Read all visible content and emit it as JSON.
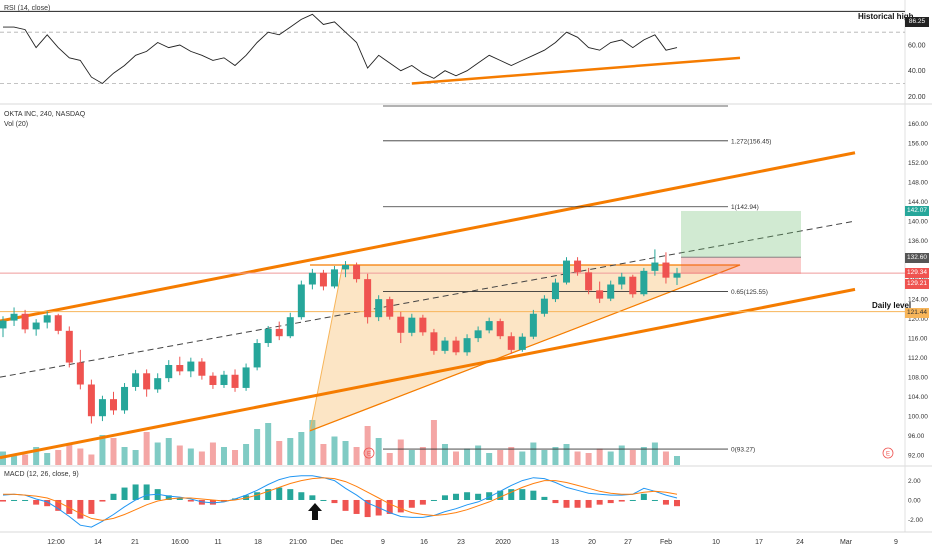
{
  "chart_data": {
    "type": "candlestick",
    "symbol_label": "OKTA INC, 240, NASDAQ",
    "volume_label": "Vol (20)",
    "rsi_label": "RSI (14, close)",
    "macd_label": "MACD (12, 26, close, 9)",
    "x_ticks": [
      "12:00",
      "14",
      "21",
      "16:00",
      "11",
      "18",
      "21:00",
      "Dec",
      "9",
      "16",
      "23",
      "2020",
      "13",
      "20",
      "27",
      "Feb",
      "10",
      "17",
      "24",
      "Mar",
      "9"
    ],
    "price_axis": {
      "ylim": [
        90,
        164
      ],
      "ticks": [
        160.0,
        156.0,
        152.0,
        148.0,
        144.0,
        140.0,
        136.0,
        132.0,
        128.0,
        124.0,
        120.0,
        116.0,
        112.0,
        108.0,
        104.0,
        100.0,
        96.0,
        92.0
      ]
    },
    "rsi_axis": {
      "ylim": [
        14,
        92
      ],
      "ticks": [
        80.0,
        60.0,
        40.0,
        20.0
      ],
      "historical_high": 86.25
    },
    "macd_axis": {
      "ylim": [
        -3.3,
        3.4
      ],
      "ticks": [
        2.0,
        0.0,
        -2.0
      ]
    },
    "fib_levels": [
      {
        "ratio": "1.272",
        "price": 156.45,
        "label": "1.272(156.45)"
      },
      {
        "ratio": "1",
        "price": 142.94,
        "label": "1(142.94)"
      },
      {
        "ratio": "0.65",
        "price": 125.55,
        "label": "0.65(125.55)"
      },
      {
        "ratio": "0",
        "price": 93.27,
        "label": "0(93.27)"
      }
    ],
    "price_badges": [
      {
        "value": "142.07",
        "color": "#26a69a"
      },
      {
        "value": "132.60",
        "color": "#555555"
      },
      {
        "value": "129.34",
        "color": "#ef5350"
      },
      {
        "value": "129.21",
        "color": "#ef5350"
      },
      {
        "value": "121.44",
        "color": "#f7b55a"
      }
    ],
    "rsi_badge": "86.25",
    "annotations": {
      "historical_high": "Historical high",
      "daily_level": "Daily level"
    },
    "colors": {
      "up": "#26a69a",
      "down": "#ef5350",
      "trend": "#f57c00",
      "macd": "#2196f3",
      "signal": "#ff7f0e"
    },
    "candles": [
      {
        "o": 118.0,
        "h": 120.5,
        "l": 116.2,
        "c": 119.6
      },
      {
        "o": 119.6,
        "h": 122.3,
        "l": 118.5,
        "c": 121.0
      },
      {
        "o": 121.0,
        "h": 121.8,
        "l": 117.0,
        "c": 117.8
      },
      {
        "o": 117.8,
        "h": 119.9,
        "l": 116.5,
        "c": 119.2
      },
      {
        "o": 119.2,
        "h": 121.5,
        "l": 118.0,
        "c": 120.7
      },
      {
        "o": 120.7,
        "h": 121.0,
        "l": 116.8,
        "c": 117.5
      },
      {
        "o": 117.5,
        "h": 118.4,
        "l": 110.0,
        "c": 111.0
      },
      {
        "o": 111.0,
        "h": 113.6,
        "l": 105.5,
        "c": 106.5
      },
      {
        "o": 106.5,
        "h": 107.5,
        "l": 98.5,
        "c": 100.0
      },
      {
        "o": 100.0,
        "h": 104.2,
        "l": 99.0,
        "c": 103.5
      },
      {
        "o": 103.5,
        "h": 105.0,
        "l": 100.3,
        "c": 101.2
      },
      {
        "o": 101.2,
        "h": 106.8,
        "l": 100.5,
        "c": 106.0
      },
      {
        "o": 106.0,
        "h": 109.5,
        "l": 105.2,
        "c": 108.8
      },
      {
        "o": 108.8,
        "h": 109.6,
        "l": 104.0,
        "c": 105.5
      },
      {
        "o": 105.5,
        "h": 108.8,
        "l": 104.8,
        "c": 107.8
      },
      {
        "o": 107.8,
        "h": 111.5,
        "l": 107.0,
        "c": 110.5
      },
      {
        "o": 110.5,
        "h": 112.2,
        "l": 108.4,
        "c": 109.2
      },
      {
        "o": 109.2,
        "h": 112.0,
        "l": 108.0,
        "c": 111.2
      },
      {
        "o": 111.2,
        "h": 111.9,
        "l": 107.5,
        "c": 108.3
      },
      {
        "o": 108.3,
        "h": 109.0,
        "l": 105.6,
        "c": 106.4
      },
      {
        "o": 106.4,
        "h": 109.3,
        "l": 105.8,
        "c": 108.5
      },
      {
        "o": 108.5,
        "h": 109.6,
        "l": 105.0,
        "c": 105.8
      },
      {
        "o": 105.8,
        "h": 110.8,
        "l": 105.2,
        "c": 110.0
      },
      {
        "o": 110.0,
        "h": 115.8,
        "l": 109.4,
        "c": 115.0
      },
      {
        "o": 115.0,
        "h": 118.5,
        "l": 114.2,
        "c": 117.9
      },
      {
        "o": 117.9,
        "h": 119.4,
        "l": 115.6,
        "c": 116.4
      },
      {
        "o": 116.4,
        "h": 121.2,
        "l": 116.0,
        "c": 120.3
      },
      {
        "o": 120.3,
        "h": 127.8,
        "l": 119.8,
        "c": 127.0
      },
      {
        "o": 127.0,
        "h": 130.2,
        "l": 126.0,
        "c": 129.4
      },
      {
        "o": 129.4,
        "h": 130.0,
        "l": 125.8,
        "c": 126.6
      },
      {
        "o": 126.6,
        "h": 130.8,
        "l": 126.2,
        "c": 130.1
      },
      {
        "o": 130.1,
        "h": 131.8,
        "l": 128.5,
        "c": 131.0
      },
      {
        "o": 131.0,
        "h": 131.5,
        "l": 127.4,
        "c": 128.1
      },
      {
        "o": 128.1,
        "h": 129.2,
        "l": 119.0,
        "c": 120.3
      },
      {
        "o": 120.3,
        "h": 124.8,
        "l": 119.5,
        "c": 124.0
      },
      {
        "o": 124.0,
        "h": 124.5,
        "l": 119.8,
        "c": 120.4
      },
      {
        "o": 120.4,
        "h": 121.4,
        "l": 115.0,
        "c": 117.1
      },
      {
        "o": 117.1,
        "h": 121.0,
        "l": 116.4,
        "c": 120.2
      },
      {
        "o": 120.2,
        "h": 120.8,
        "l": 116.5,
        "c": 117.2
      },
      {
        "o": 117.2,
        "h": 117.9,
        "l": 112.6,
        "c": 113.4
      },
      {
        "o": 113.4,
        "h": 116.2,
        "l": 112.8,
        "c": 115.5
      },
      {
        "o": 115.5,
        "h": 116.3,
        "l": 112.5,
        "c": 113.1
      },
      {
        "o": 113.1,
        "h": 116.8,
        "l": 112.4,
        "c": 116.0
      },
      {
        "o": 116.0,
        "h": 118.4,
        "l": 115.2,
        "c": 117.6
      },
      {
        "o": 117.6,
        "h": 120.2,
        "l": 117.0,
        "c": 119.5
      },
      {
        "o": 119.5,
        "h": 120.0,
        "l": 115.8,
        "c": 116.4
      },
      {
        "o": 116.4,
        "h": 117.2,
        "l": 112.8,
        "c": 113.6
      },
      {
        "o": 113.6,
        "h": 117.0,
        "l": 113.2,
        "c": 116.3
      },
      {
        "o": 116.3,
        "h": 121.8,
        "l": 115.8,
        "c": 121.0
      },
      {
        "o": 121.0,
        "h": 124.8,
        "l": 120.4,
        "c": 124.1
      },
      {
        "o": 124.0,
        "h": 128.2,
        "l": 123.4,
        "c": 127.4
      },
      {
        "o": 127.4,
        "h": 132.6,
        "l": 127.0,
        "c": 131.9
      },
      {
        "o": 131.9,
        "h": 132.6,
        "l": 128.8,
        "c": 129.5
      },
      {
        "o": 129.5,
        "h": 130.4,
        "l": 125.0,
        "c": 125.8
      },
      {
        "o": 125.8,
        "h": 127.6,
        "l": 123.2,
        "c": 124.1
      },
      {
        "o": 124.1,
        "h": 127.8,
        "l": 123.6,
        "c": 127.0
      },
      {
        "o": 127.0,
        "h": 129.4,
        "l": 126.0,
        "c": 128.6
      },
      {
        "o": 128.6,
        "h": 129.0,
        "l": 124.3,
        "c": 125.0
      },
      {
        "o": 125.0,
        "h": 130.4,
        "l": 124.6,
        "c": 129.8
      },
      {
        "o": 129.8,
        "h": 134.2,
        "l": 128.8,
        "c": 131.5
      },
      {
        "o": 131.5,
        "h": 133.6,
        "l": 127.2,
        "c": 128.4
      },
      {
        "o": 128.4,
        "h": 130.4,
        "l": 126.9,
        "c": 129.3
      }
    ],
    "volume": [
      9,
      6,
      7,
      12,
      8,
      10,
      14,
      11,
      7,
      20,
      18,
      12,
      10,
      22,
      15,
      18,
      13,
      11,
      9,
      15,
      12,
      10,
      14,
      24,
      28,
      16,
      18,
      22,
      30,
      14,
      19,
      16,
      12,
      26,
      18,
      8,
      17,
      10,
      12,
      30,
      14,
      9,
      11,
      13,
      8,
      10,
      12,
      9,
      15,
      10,
      12,
      14,
      9,
      8,
      11,
      9,
      13,
      10,
      12,
      15,
      9,
      6
    ],
    "rsi": [
      74,
      74,
      72,
      58,
      68,
      58,
      50,
      48,
      35,
      30,
      38,
      44,
      52,
      55,
      62,
      58,
      60,
      55,
      52,
      48,
      50,
      44,
      52,
      62,
      70,
      68,
      74,
      80,
      84,
      76,
      78,
      70,
      62,
      42,
      52,
      46,
      40,
      44,
      38,
      34,
      40,
      36,
      40,
      46,
      52,
      48,
      44,
      48,
      52,
      56,
      62,
      70,
      66,
      58,
      56,
      62,
      64,
      58,
      64,
      68,
      56,
      58
    ],
    "rsi_trendline": {
      "from": 30,
      "to": 50
    },
    "macd": [
      0.5,
      0.6,
      0.5,
      0.1,
      -0.2,
      -0.9,
      -1.7,
      -2.6,
      -2.8,
      -2.2,
      -1.5,
      -0.7,
      0.0,
      0.5,
      0.6,
      0.4,
      0.3,
      0.1,
      -0.2,
      -0.3,
      -0.2,
      0.1,
      0.5,
      1.0,
      1.6,
      2.1,
      2.4,
      2.5,
      2.5,
      2.3,
      2.0,
      1.2,
      0.5,
      -0.3,
      -0.8,
      -1.3,
      -1.7,
      -1.8,
      -1.8,
      -1.6,
      -1.2,
      -0.9,
      -0.5,
      -0.2,
      0.3,
      0.9,
      1.5,
      2.0,
      2.3,
      2.2,
      1.8,
      1.3,
      1.0,
      0.7,
      0.6,
      0.5,
      0.5,
      0.6,
      1.2,
      0.9,
      0.5,
      0.2
    ],
    "signal": [
      0.6,
      0.6,
      0.5,
      0.4,
      0.2,
      -0.2,
      -0.8,
      -1.4,
      -1.9,
      -2.1,
      -1.9,
      -1.5,
      -1.0,
      -0.5,
      -0.1,
      0.1,
      0.2,
      0.2,
      0.1,
      0.0,
      -0.1,
      0.0,
      0.2,
      0.5,
      0.9,
      1.3,
      1.7,
      2.0,
      2.2,
      2.3,
      2.2,
      1.9,
      1.4,
      0.8,
      0.2,
      -0.4,
      -0.9,
      -1.3,
      -1.5,
      -1.6,
      -1.5,
      -1.3,
      -1.0,
      -0.6,
      -0.2,
      0.3,
      0.8,
      1.3,
      1.7,
      2.0,
      2.0,
      1.8,
      1.5,
      1.2,
      0.9,
      0.7,
      0.6,
      0.6,
      0.8,
      0.9,
      0.8,
      0.6
    ]
  }
}
